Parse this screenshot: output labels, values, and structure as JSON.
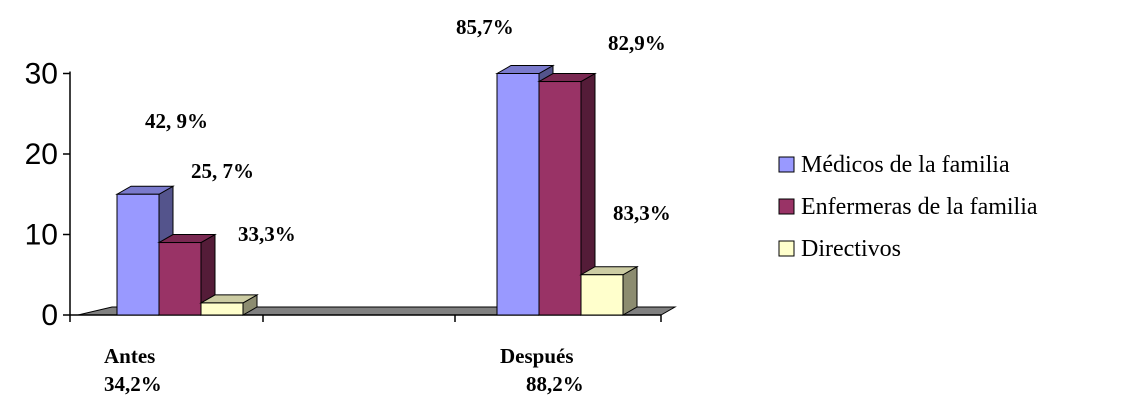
{
  "chart_data": {
    "type": "bar",
    "title": "",
    "xlabel": "",
    "ylabel": "",
    "ylim": [
      0,
      30
    ],
    "yticks": [
      0,
      10,
      20,
      30
    ],
    "grid": false,
    "legend_position": "right",
    "categories": [
      "Antes",
      "Después"
    ],
    "category_totals": [
      "34,2%",
      "88,2%"
    ],
    "series": [
      {
        "name": "Médicos de la familia",
        "color": "#9999FF",
        "values": [
          15,
          30
        ],
        "labels": [
          "42, 9%",
          "85,7%"
        ]
      },
      {
        "name": "Enfermeras de la familia",
        "color": "#993366",
        "values": [
          9,
          29
        ],
        "labels": [
          "25, 7%",
          "82,9%"
        ]
      },
      {
        "name": "Directivos",
        "color": "#FFFFCC",
        "values": [
          1.5,
          5
        ],
        "labels": [
          "33,3%",
          "83,3%"
        ]
      }
    ]
  }
}
